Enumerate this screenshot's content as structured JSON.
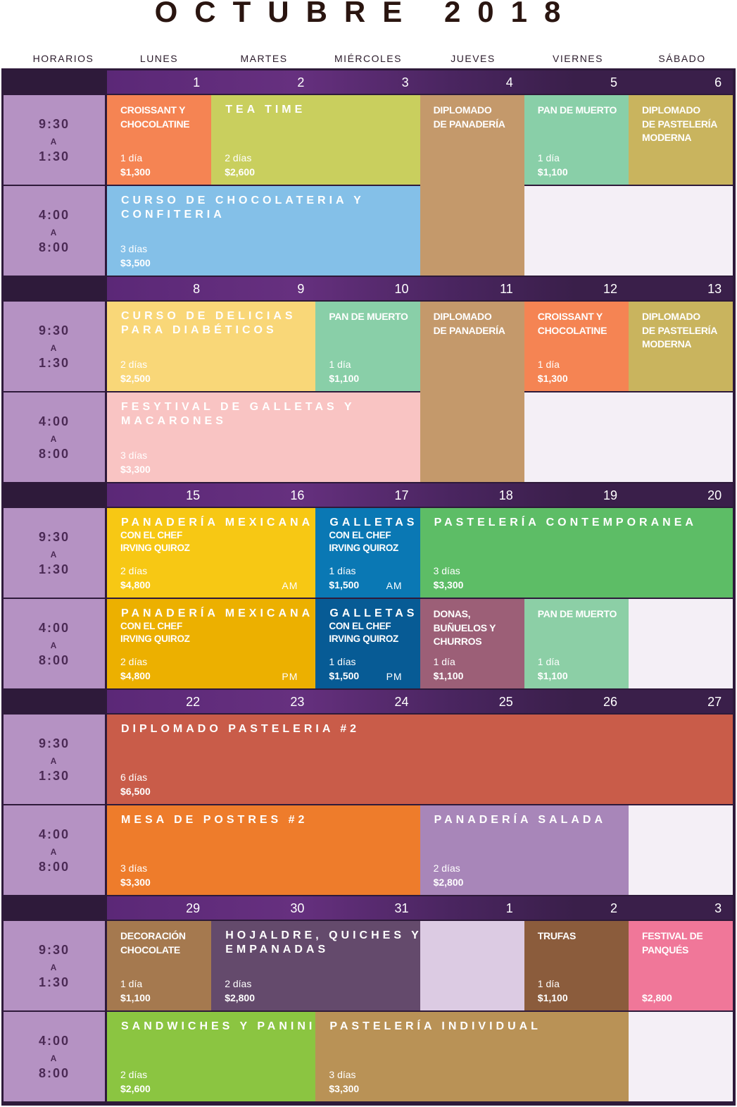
{
  "title": "OCTUBRE 2018",
  "headers": [
    "HORARIOS",
    "LUNES",
    "MARTES",
    "MIÉRCOLES",
    "JUEVES",
    "VIERNES",
    "SÁBADO"
  ],
  "time_slots": [
    [
      "9:30",
      "A",
      "1:30"
    ],
    [
      "4:00",
      "A",
      "8:00"
    ]
  ],
  "weeks": [
    {
      "days": [
        1,
        2,
        3,
        4,
        5,
        6
      ],
      "events": [
        {
          "col": 0,
          "row": 0,
          "cols": 1,
          "rows": 1,
          "color": "#f58453",
          "spaced": false,
          "title": [
            "CROISSANT Y",
            "CHOCOLATINE"
          ],
          "duration": "1 día",
          "price": "$1,300"
        },
        {
          "col": 1,
          "row": 0,
          "cols": 2,
          "rows": 1,
          "color": "#c9cf5e",
          "spaced": true,
          "title": [
            "TEA TIME"
          ],
          "duration": "2 días",
          "price": "$2,600"
        },
        {
          "col": 3,
          "row": 0,
          "cols": 1,
          "rows": 2,
          "color": "#c4996b",
          "spaced": false,
          "title": [
            "DIPLOMADO",
            "DE PANADERÍA"
          ]
        },
        {
          "col": 4,
          "row": 0,
          "cols": 1,
          "rows": 1,
          "color": "#89cfa8",
          "spaced": false,
          "title": [
            "PAN DE MUERTO"
          ],
          "duration": "1 día",
          "price": "$1,100"
        },
        {
          "col": 5,
          "row": 0,
          "cols": 1,
          "rows": 1,
          "color": "#c9b45e",
          "spaced": false,
          "title": [
            "DIPLOMADO",
            "DE PASTELERÍA",
            "MODERNA"
          ]
        },
        {
          "col": 0,
          "row": 1,
          "cols": 3,
          "rows": 1,
          "color": "#84c0e8",
          "spaced": true,
          "title": [
            "CURSO DE CHOCOLATERIA Y",
            "CONFITERIA"
          ],
          "duration": "3 días",
          "price": "$3,500"
        }
      ]
    },
    {
      "days": [
        8,
        9,
        10,
        11,
        12,
        13
      ],
      "events": [
        {
          "col": 0,
          "row": 0,
          "cols": 2,
          "rows": 1,
          "color": "#f9d778",
          "spaced": true,
          "title": [
            "CURSO DE DELICIAS",
            "PARA DIABÉTICOS"
          ],
          "duration": "2 días",
          "price": "$2,500"
        },
        {
          "col": 2,
          "row": 0,
          "cols": 1,
          "rows": 1,
          "color": "#89cfa8",
          "spaced": false,
          "title": [
            "PAN DE MUERTO"
          ],
          "duration": "1 día",
          "price": "$1,100"
        },
        {
          "col": 3,
          "row": 0,
          "cols": 1,
          "rows": 2,
          "color": "#c4996b",
          "spaced": false,
          "title": [
            "DIPLOMADO",
            "DE PANADERÍA"
          ]
        },
        {
          "col": 4,
          "row": 0,
          "cols": 1,
          "rows": 1,
          "color": "#f58453",
          "spaced": false,
          "title": [
            "CROISSANT Y",
            "CHOCOLATINE"
          ],
          "duration": "1 día",
          "price": "$1,300"
        },
        {
          "col": 5,
          "row": 0,
          "cols": 1,
          "rows": 1,
          "color": "#c9b45e",
          "spaced": false,
          "title": [
            "DIPLOMADO",
            "DE PASTELERÍA",
            "MODERNA"
          ]
        },
        {
          "col": 0,
          "row": 1,
          "cols": 3,
          "rows": 1,
          "color": "#f9c4c3",
          "spaced": true,
          "title": [
            "FESYTIVAL DE GALLETAS Y",
            "MACARONES"
          ],
          "duration": "3 días",
          "price": "$3,300"
        }
      ]
    },
    {
      "days": [
        15,
        16,
        17,
        18,
        19,
        20
      ],
      "events": [
        {
          "col": 0,
          "row": 0,
          "cols": 2,
          "rows": 1,
          "color": "#f7c814",
          "spaced": true,
          "title": [
            "PANADERÍA MEXICANA"
          ],
          "subtitle": [
            "CON EL CHEF",
            "IRVING QUIROZ"
          ],
          "duration": "2 días",
          "price": "$4,800",
          "session": "AM"
        },
        {
          "col": 2,
          "row": 0,
          "cols": 1,
          "rows": 1,
          "color": "#0a78b4",
          "spaced": true,
          "title": [
            "GALLETAS"
          ],
          "subtitle": [
            "CON EL CHEF",
            "IRVING QUIROZ"
          ],
          "duration": "1 días",
          "price": "$1,500",
          "session": "AM"
        },
        {
          "col": 3,
          "row": 0,
          "cols": 3,
          "rows": 1,
          "color": "#5dbd66",
          "spaced": true,
          "title": [
            "PASTELERÍA CONTEMPORANEA"
          ],
          "duration": "3 días",
          "price": "$3,300"
        },
        {
          "col": 0,
          "row": 1,
          "cols": 2,
          "rows": 1,
          "color": "#ecb000",
          "spaced": true,
          "title": [
            "PANADERÍA MEXICANA"
          ],
          "subtitle": [
            "CON EL CHEF",
            "IRVING QUIROZ"
          ],
          "duration": "2 días",
          "price": "$4,800",
          "session": "PM"
        },
        {
          "col": 2,
          "row": 1,
          "cols": 1,
          "rows": 1,
          "color": "#075b95",
          "spaced": true,
          "title": [
            "GALLETAS"
          ],
          "subtitle": [
            "CON EL CHEF",
            "IRVING QUIROZ"
          ],
          "duration": "1 días",
          "price": "$1,500",
          "session": "PM"
        },
        {
          "col": 3,
          "row": 1,
          "cols": 1,
          "rows": 1,
          "color": "#9c5f77",
          "spaced": false,
          "title": [
            "DONAS,",
            "BUÑUELOS Y",
            "CHURROS"
          ],
          "duration": "1 día",
          "price": "$1,100"
        },
        {
          "col": 4,
          "row": 1,
          "cols": 1,
          "rows": 1,
          "color": "#8ccfa6",
          "spaced": false,
          "title": [
            "PAN DE MUERTO"
          ],
          "duration": "1 día",
          "price": "$1,100"
        }
      ]
    },
    {
      "days": [
        22,
        23,
        24,
        25,
        26,
        27
      ],
      "events": [
        {
          "col": 0,
          "row": 0,
          "cols": 6,
          "rows": 1,
          "color": "#c95c49",
          "spaced": true,
          "title": [
            "DIPLOMADO PASTELERIA #2"
          ],
          "duration": "6 días",
          "price": "$6,500"
        },
        {
          "col": 0,
          "row": 1,
          "cols": 3,
          "rows": 1,
          "color": "#ee7c2b",
          "spaced": true,
          "title": [
            "MESA DE POSTRES #2"
          ],
          "duration": "3 días",
          "price": "$3,300"
        },
        {
          "col": 3,
          "row": 1,
          "cols": 2,
          "rows": 1,
          "color": "#a886b9",
          "spaced": true,
          "title": [
            "PANADERÍA SALADA"
          ],
          "duration": "2 días",
          "price": "$2,800"
        }
      ]
    },
    {
      "days": [
        29,
        30,
        31,
        1,
        2,
        3
      ],
      "events": [
        {
          "col": 0,
          "row": 0,
          "cols": 1,
          "rows": 1,
          "color": "#a5794f",
          "spaced": false,
          "title": [
            "DECORACIÓN",
            "CHOCOLATE"
          ],
          "duration": "1 día",
          "price": "$1,100"
        },
        {
          "col": 1,
          "row": 0,
          "cols": 2,
          "rows": 1,
          "color": "#644a6c",
          "spaced": true,
          "title": [
            "HOJALDRE, QUICHES Y",
            "EMPANADAS"
          ],
          "duration": "2 días",
          "price": "$2,800"
        },
        {
          "col": 3,
          "row": 0,
          "cols": 1,
          "rows": 1,
          "color": "#dccbe3"
        },
        {
          "col": 4,
          "row": 0,
          "cols": 1,
          "rows": 1,
          "color": "#8b5c3c",
          "spaced": false,
          "title": [
            "TRUFAS"
          ],
          "duration": "1 día",
          "price": "$1,100"
        },
        {
          "col": 5,
          "row": 0,
          "cols": 1,
          "rows": 1,
          "color": "#f07799",
          "spaced": false,
          "title": [
            "FESTIVAL DE",
            "PANQUÉS"
          ],
          "price": "$2,800"
        },
        {
          "col": 0,
          "row": 1,
          "cols": 2,
          "rows": 1,
          "color": "#8bc541",
          "spaced": true,
          "title": [
            "SANDWICHES Y PANINI"
          ],
          "duration": "2 días",
          "price": "$2,600"
        },
        {
          "col": 2,
          "row": 1,
          "cols": 3,
          "rows": 1,
          "color": "#b99256",
          "spaced": true,
          "title": [
            "PASTELERÍA INDIVIDUAL"
          ],
          "duration": "3 días",
          "price": "$3,300"
        }
      ]
    }
  ]
}
